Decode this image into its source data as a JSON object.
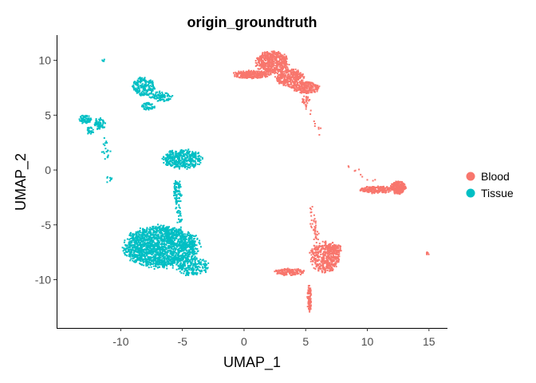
{
  "chart_data": {
    "type": "scatter",
    "title": "origin_groundtruth",
    "xlabel": "UMAP_1",
    "ylabel": "UMAP_2",
    "xlim": [
      -15.2,
      16.5
    ],
    "ylim": [
      -14.4,
      12.3
    ],
    "x_ticks": [
      -10,
      -5,
      0,
      5,
      10,
      15
    ],
    "y_ticks": [
      -10,
      -5,
      0,
      5,
      10
    ],
    "x_tick_labels": [
      "-10",
      "-5",
      "0",
      "5",
      "10",
      "15"
    ],
    "y_tick_labels": [
      "-10",
      "-5",
      "0",
      "5",
      "10"
    ],
    "grid": false,
    "legend_position": "right",
    "series": [
      {
        "name": "Blood",
        "color": "#F8766D",
        "clusters": [
          {
            "cx": 2.3,
            "cy": 9.8,
            "rx": 1.3,
            "ry": 1.0,
            "n": 500
          },
          {
            "cx": 0.6,
            "cy": 8.7,
            "rx": 1.5,
            "ry": 0.35,
            "n": 260
          },
          {
            "cx": 3.7,
            "cy": 8.4,
            "rx": 1.2,
            "ry": 0.8,
            "n": 320
          },
          {
            "cx": 5.0,
            "cy": 7.5,
            "rx": 1.1,
            "ry": 0.5,
            "n": 220
          },
          {
            "cx": 5.0,
            "cy": 6.3,
            "rx": 0.3,
            "ry": 0.6,
            "n": 30
          },
          {
            "cx": 12.5,
            "cy": -1.6,
            "rx": 0.6,
            "ry": 0.6,
            "n": 230
          },
          {
            "cx": 10.7,
            "cy": -1.8,
            "rx": 1.3,
            "ry": 0.32,
            "n": 220
          },
          {
            "cx": 6.6,
            "cy": -7.9,
            "rx": 1.2,
            "ry": 1.4,
            "n": 460
          },
          {
            "cx": 7.4,
            "cy": -7.2,
            "rx": 0.5,
            "ry": 0.4,
            "n": 80
          },
          {
            "cx": 3.7,
            "cy": -9.3,
            "rx": 1.2,
            "ry": 0.3,
            "n": 140
          },
          {
            "cx": 5.3,
            "cy": -11.7,
            "rx": 0.18,
            "ry": 1.2,
            "n": 90
          },
          {
            "cx": 14.9,
            "cy": -7.6,
            "rx": 0.12,
            "ry": 0.12,
            "n": 8
          }
        ],
        "trails": [
          {
            "from": [
              5.4,
              -3.6
            ],
            "to": [
              6.0,
              -6.6
            ],
            "n": 40
          },
          {
            "from": [
              5.2,
              5.5
            ],
            "to": [
              6.3,
              3.0
            ],
            "n": 10
          },
          {
            "from": [
              8.5,
              0.5
            ],
            "to": [
              10.5,
              -1.0
            ],
            "n": 10
          }
        ]
      },
      {
        "name": "Tissue",
        "color": "#00BFC4",
        "clusters": [
          {
            "cx": -8.1,
            "cy": 7.6,
            "rx": 0.9,
            "ry": 0.9,
            "n": 200
          },
          {
            "cx": -6.7,
            "cy": 6.7,
            "rx": 0.9,
            "ry": 0.45,
            "n": 90
          },
          {
            "cx": -7.8,
            "cy": 5.8,
            "rx": 0.6,
            "ry": 0.35,
            "n": 50
          },
          {
            "cx": -12.9,
            "cy": 4.6,
            "rx": 0.5,
            "ry": 0.4,
            "n": 60
          },
          {
            "cx": -11.7,
            "cy": 4.2,
            "rx": 0.5,
            "ry": 0.5,
            "n": 60
          },
          {
            "cx": -12.5,
            "cy": 3.6,
            "rx": 0.3,
            "ry": 0.35,
            "n": 25
          },
          {
            "cx": -5.0,
            "cy": 1.0,
            "rx": 1.6,
            "ry": 0.85,
            "n": 380
          },
          {
            "cx": -5.4,
            "cy": -2.0,
            "rx": 0.35,
            "ry": 1.1,
            "n": 80
          },
          {
            "cx": -6.7,
            "cy": -7.0,
            "rx": 3.0,
            "ry": 1.9,
            "n": 1900
          },
          {
            "cx": -4.2,
            "cy": -8.8,
            "rx": 1.3,
            "ry": 0.8,
            "n": 200
          },
          {
            "cx": -11.4,
            "cy": 10.0,
            "rx": 0.1,
            "ry": 0.1,
            "n": 4
          },
          {
            "cx": -10.9,
            "cy": -0.9,
            "rx": 0.3,
            "ry": 0.3,
            "n": 8
          }
        ],
        "trails": [
          {
            "from": [
              -11.4,
              3.0
            ],
            "to": [
              -11.1,
              1.0
            ],
            "n": 20
          },
          {
            "from": [
              -5.3,
              -3.3
            ],
            "to": [
              -5.2,
              -4.8
            ],
            "n": 25
          }
        ]
      }
    ]
  }
}
